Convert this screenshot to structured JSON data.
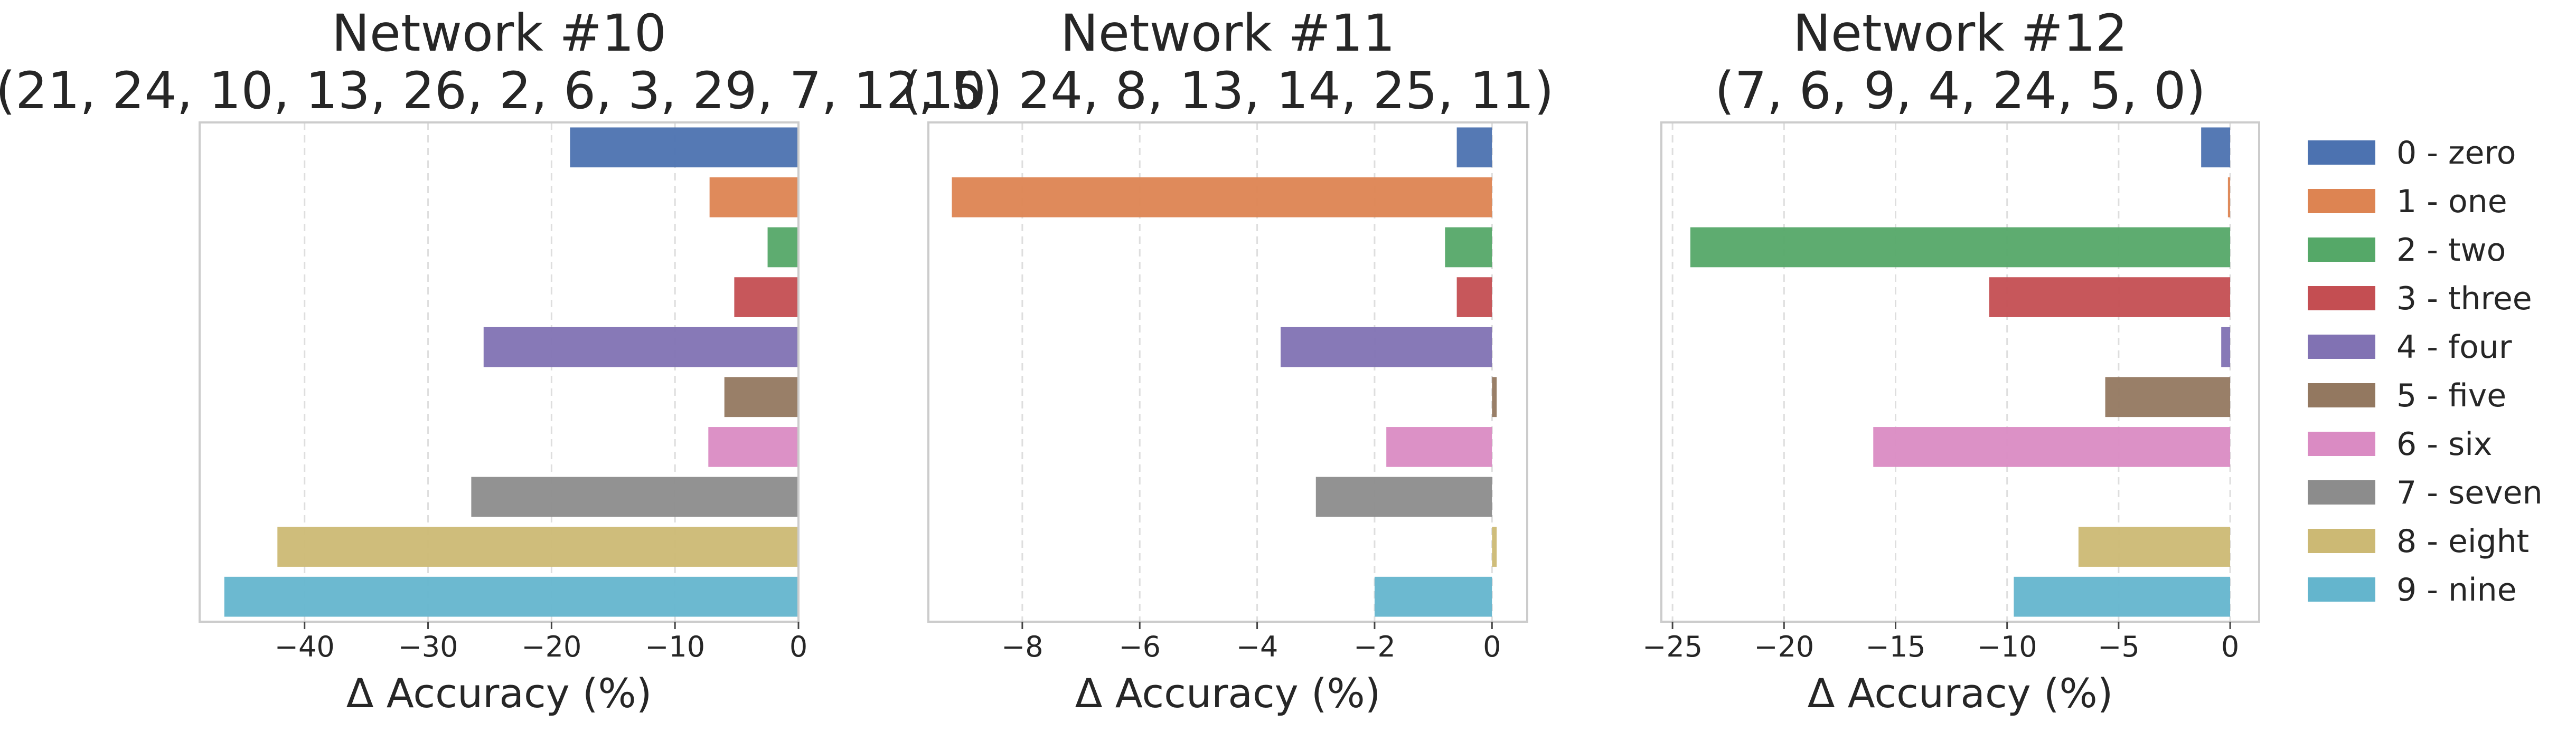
{
  "chart_data": [
    {
      "type": "bar",
      "orientation": "horizontal",
      "title": "Network #10",
      "subtitle": "(21, 24, 10, 13, 26, 2, 6, 3, 29, 7, 12, 5)",
      "xlabel": "Δ Accuracy (%)",
      "ylabel": "",
      "xlim": [
        -48.5,
        0
      ],
      "xticks": [
        -40,
        -30,
        -20,
        -10,
        0
      ],
      "xtick_labels": [
        "−40",
        "−30",
        "−20",
        "−10",
        "0"
      ],
      "grid": "vertical dashed",
      "categories": [
        "0 - zero",
        "1 - one",
        "2 - two",
        "3 - three",
        "4 - four",
        "5 - five",
        "6 - six",
        "7 - seven",
        "8 - eight",
        "9 - nine"
      ],
      "values": [
        -18.5,
        -7.2,
        -2.5,
        -5.2,
        -25.5,
        -6.0,
        -7.3,
        -26.5,
        -42.2,
        -46.5
      ]
    },
    {
      "type": "bar",
      "orientation": "horizontal",
      "title": "Network #11",
      "subtitle": "(10, 24, 8, 13, 14, 25, 11)",
      "xlabel": "Δ Accuracy (%)",
      "ylabel": "",
      "xlim": [
        -9.6,
        0.6
      ],
      "xticks": [
        -8,
        -6,
        -4,
        -2,
        0
      ],
      "xtick_labels": [
        "−8",
        "−6",
        "−4",
        "−2",
        "0"
      ],
      "grid": "vertical dashed",
      "categories": [
        "0 - zero",
        "1 - one",
        "2 - two",
        "3 - three",
        "4 - four",
        "5 - five",
        "6 - six",
        "7 - seven",
        "8 - eight",
        "9 - nine"
      ],
      "values": [
        -0.6,
        -9.2,
        -0.8,
        -0.6,
        -3.6,
        0.08,
        -1.8,
        -3.0,
        0.08,
        -2.0
      ]
    },
    {
      "type": "bar",
      "orientation": "horizontal",
      "title": "Network #12",
      "subtitle": "(7, 6, 9, 4, 24, 5, 0)",
      "xlabel": "Δ Accuracy (%)",
      "ylabel": "",
      "xlim": [
        -25.5,
        1.3
      ],
      "xticks": [
        -25,
        -20,
        -15,
        -10,
        -5,
        0
      ],
      "xtick_labels": [
        "−25",
        "−20",
        "−15",
        "−10",
        "−5",
        "0"
      ],
      "grid": "vertical dashed",
      "categories": [
        "0 - zero",
        "1 - one",
        "2 - two",
        "3 - three",
        "4 - four",
        "5 - five",
        "6 - six",
        "7 - seven",
        "8 - eight",
        "9 - nine"
      ],
      "values": [
        -1.3,
        -0.1,
        -24.2,
        -10.8,
        -0.4,
        -5.6,
        -16.0,
        0.0,
        -6.8,
        -9.7
      ]
    }
  ],
  "legend": {
    "placement": "right",
    "entries": [
      "0 - zero",
      "1 - one",
      "2 - two",
      "3 - three",
      "4 - four",
      "5 - five",
      "6 - six",
      "7 - seven",
      "8 - eight",
      "9 - nine"
    ]
  },
  "colors": [
    "#4c72b0",
    "#dd8452",
    "#55a868",
    "#c44e52",
    "#8172b3",
    "#937860",
    "#da8bc3",
    "#8c8c8c",
    "#ccb974",
    "#64b5cd"
  ],
  "bar_alpha": 0.95
}
